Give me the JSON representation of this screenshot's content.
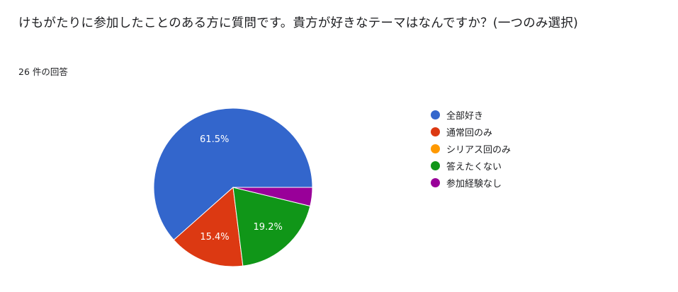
{
  "question": {
    "title": "けもがたりに参加したことのある方に質問です。貴方が好きなテーマはなんですか？(一つのみ選択)",
    "response_count": "26 件の回答"
  },
  "chart_data": {
    "type": "pie",
    "title": "",
    "total_responses": 26,
    "legend_position": "right",
    "slices": [
      {
        "label": "全部好き",
        "value": 61.5,
        "display": "61.5%",
        "color": "#3366cc"
      },
      {
        "label": "通常回のみ",
        "value": 15.4,
        "display": "15.4%",
        "color": "#dc3912"
      },
      {
        "label": "シリアス回のみ",
        "value": 0,
        "display": "",
        "color": "#ff9900"
      },
      {
        "label": "答えたくない",
        "value": 19.2,
        "display": "19.2%",
        "color": "#109618"
      },
      {
        "label": "参加経験なし",
        "value": 3.8,
        "display": "",
        "color": "#990099"
      }
    ]
  }
}
